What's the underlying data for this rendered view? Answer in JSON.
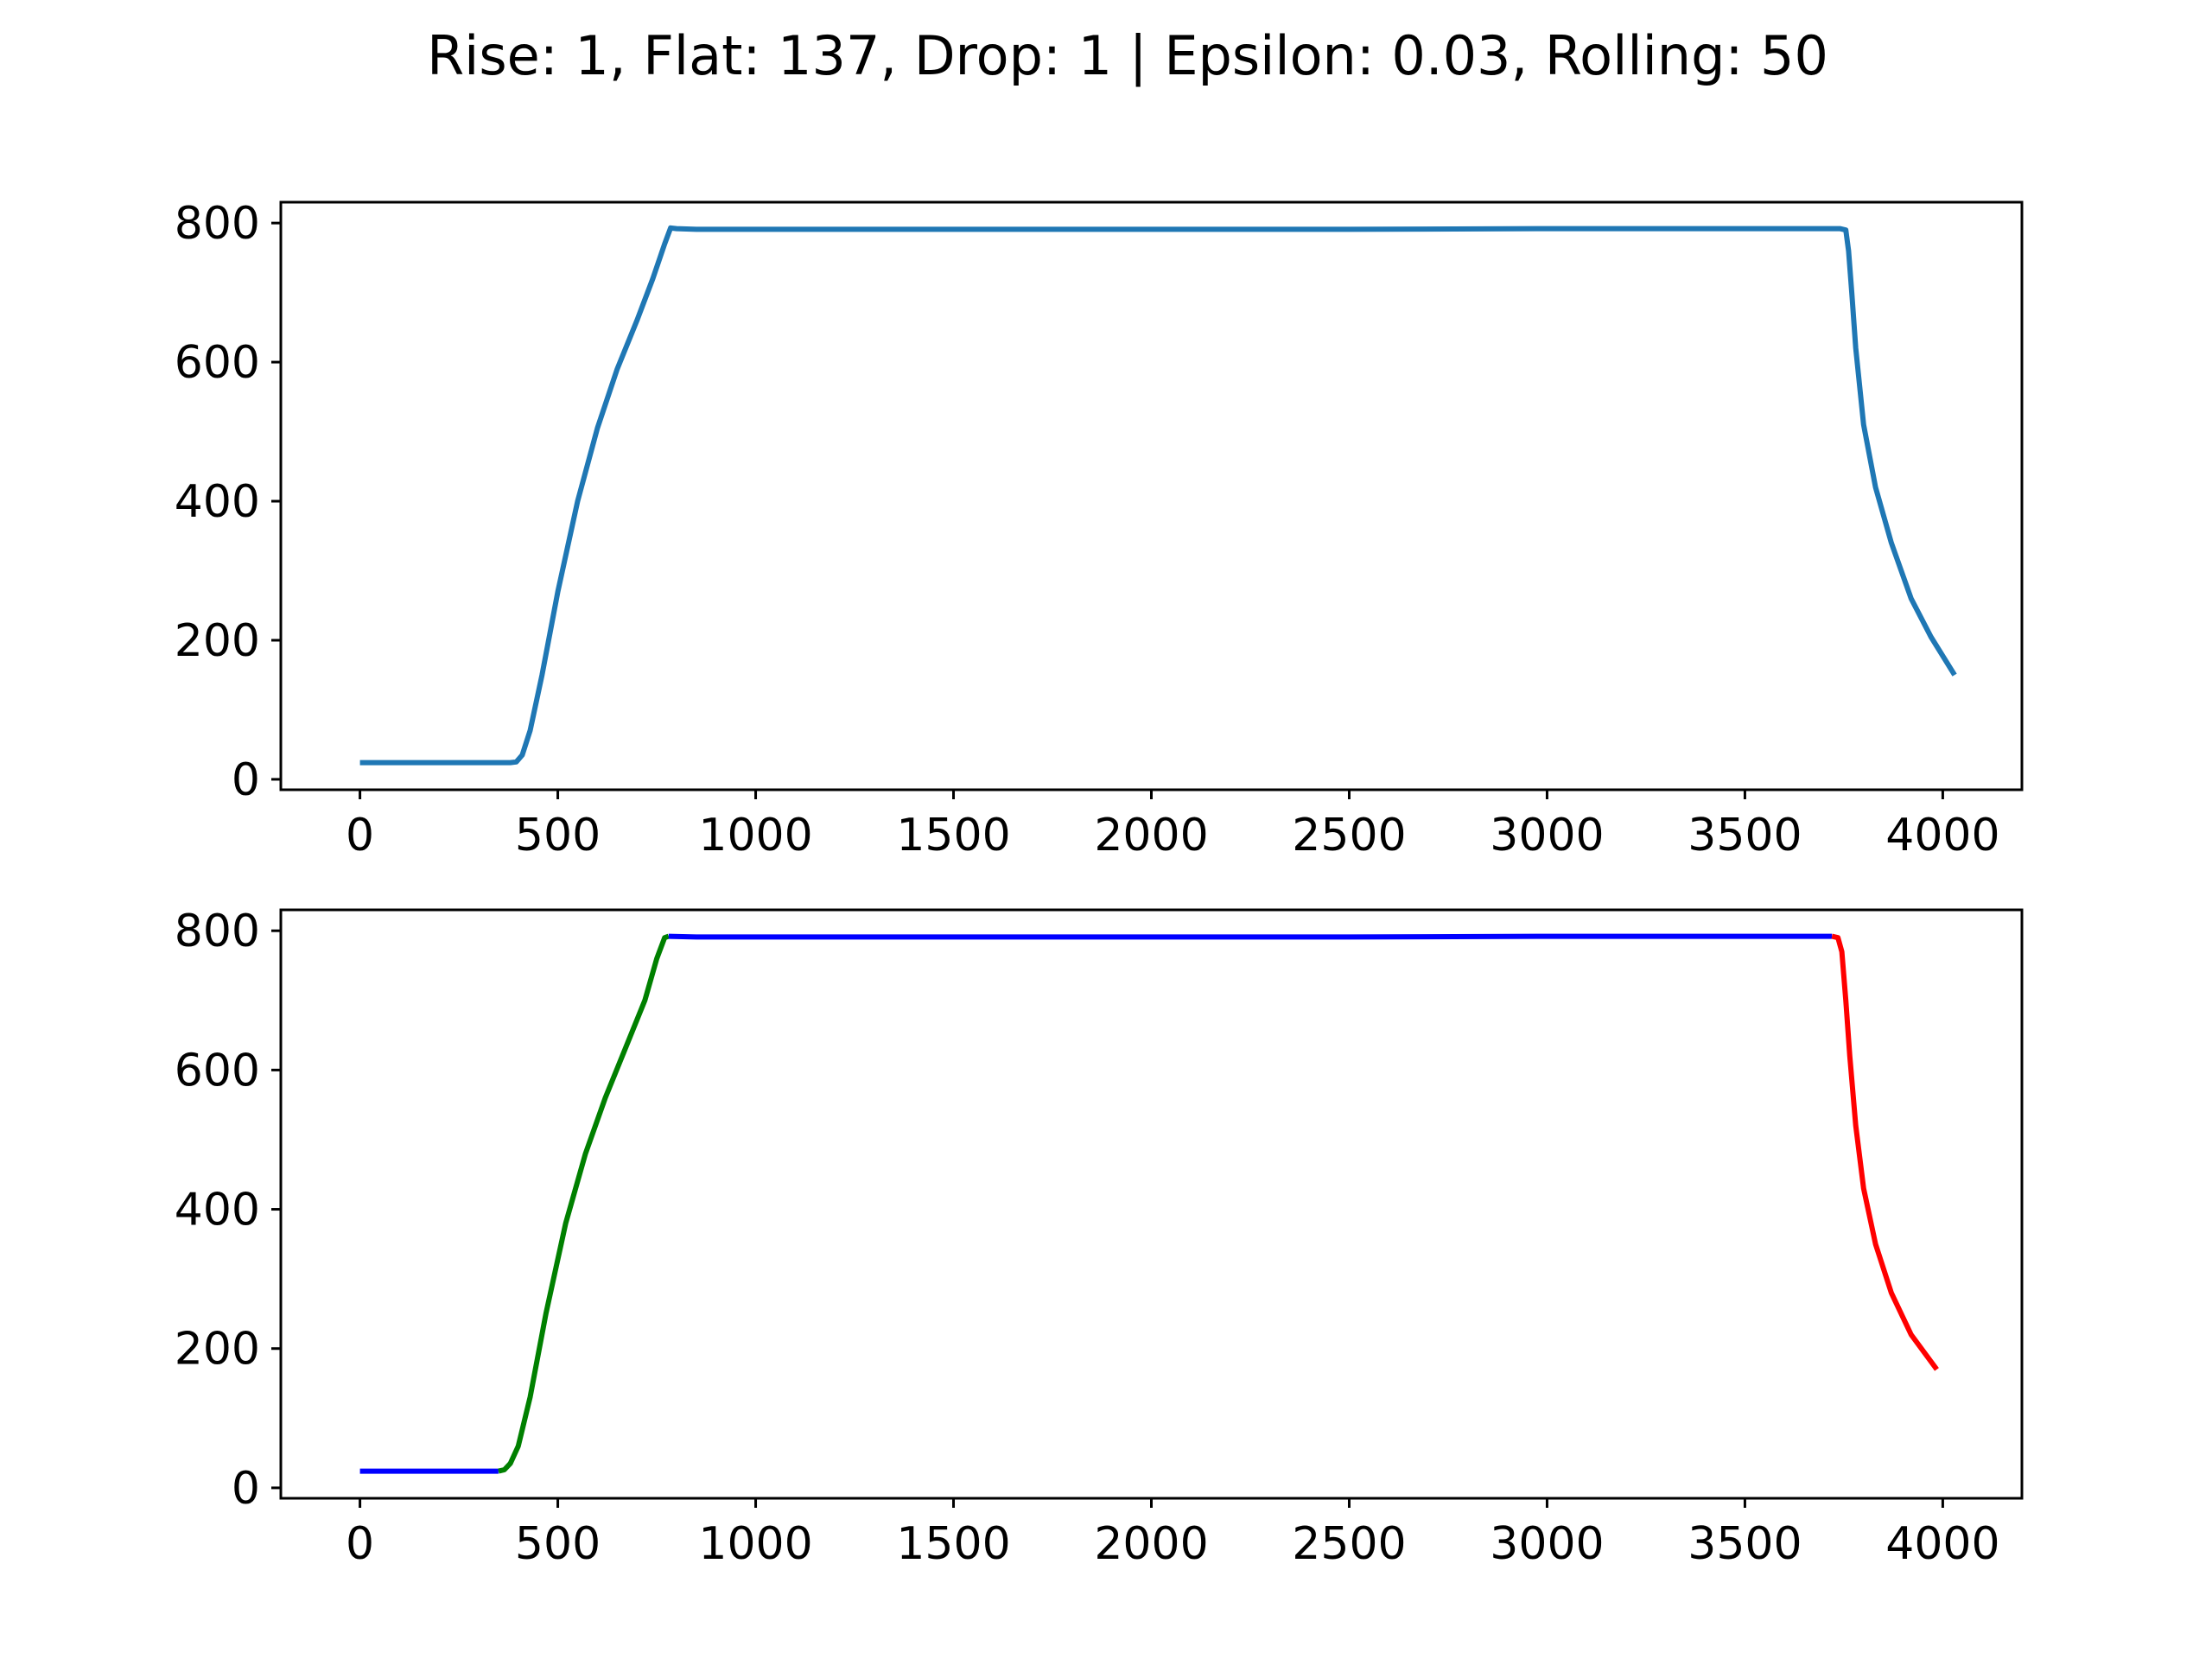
{
  "figure": {
    "title": "Rise: 1, Flat: 137, Drop: 1 | Epsilon: 0.03, Rolling: 50"
  },
  "chart_data": [
    {
      "type": "line",
      "panel": "top",
      "title": "",
      "xlabel": "",
      "ylabel": "",
      "xlim": [
        -200,
        4200
      ],
      "ylim": [
        -15,
        830
      ],
      "xticks": [
        0,
        500,
        1000,
        1500,
        2000,
        2500,
        3000,
        3500,
        4000
      ],
      "xtick_labels": [
        "0",
        "500",
        "1000",
        "1500",
        "2000",
        "2500",
        "3000",
        "3500",
        "4000"
      ],
      "yticks": [
        0,
        200,
        400,
        600,
        800
      ],
      "ytick_labels": [
        "0",
        "200",
        "400",
        "600",
        "800"
      ],
      "grid": false,
      "series": [
        {
          "color": "#1f77b4",
          "points": [
            [
              0,
              24
            ],
            [
              300,
              24
            ],
            [
              380,
              24
            ],
            [
              395,
              25
            ],
            [
              410,
              35
            ],
            [
              430,
              70
            ],
            [
              460,
              150
            ],
            [
              500,
              270
            ],
            [
              550,
              400
            ],
            [
              600,
              505
            ],
            [
              650,
              590
            ],
            [
              700,
              660
            ],
            [
              740,
              720
            ],
            [
              770,
              770
            ],
            [
              785,
              793
            ],
            [
              800,
              792
            ],
            [
              850,
              791
            ],
            [
              1000,
              791
            ],
            [
              1500,
              791
            ],
            [
              2000,
              791
            ],
            [
              2500,
              791
            ],
            [
              3000,
              792
            ],
            [
              3500,
              792
            ],
            [
              3740,
              792
            ],
            [
              3755,
              790
            ],
            [
              3762,
              760
            ],
            [
              3770,
              700
            ],
            [
              3780,
              620
            ],
            [
              3800,
              510
            ],
            [
              3830,
              420
            ],
            [
              3870,
              340
            ],
            [
              3920,
              260
            ],
            [
              3970,
              205
            ],
            [
              4030,
              150
            ]
          ]
        }
      ]
    },
    {
      "type": "line",
      "panel": "bottom",
      "title": "",
      "xlabel": "",
      "ylabel": "",
      "xlim": [
        -200,
        4200
      ],
      "ylim": [
        -15,
        830
      ],
      "xticks": [
        0,
        500,
        1000,
        1500,
        2000,
        2500,
        3000,
        3500,
        4000
      ],
      "xtick_labels": [
        "0",
        "500",
        "1000",
        "1500",
        "2000",
        "2500",
        "3000",
        "3500",
        "4000"
      ],
      "yticks": [
        0,
        200,
        400,
        600,
        800
      ],
      "ytick_labels": [
        "0",
        "200",
        "400",
        "600",
        "800"
      ],
      "grid": false,
      "series": [
        {
          "color": "#0000ff",
          "points": [
            [
              0,
              24
            ],
            [
              200,
              24
            ],
            [
              350,
              24
            ]
          ]
        },
        {
          "color": "#008000",
          "points": [
            [
              350,
              24
            ],
            [
              365,
              26
            ],
            [
              380,
              35
            ],
            [
              400,
              60
            ],
            [
              430,
              130
            ],
            [
              470,
              250
            ],
            [
              520,
              380
            ],
            [
              570,
              480
            ],
            [
              620,
              560
            ],
            [
              670,
              630
            ],
            [
              720,
              700
            ],
            [
              750,
              760
            ],
            [
              770,
              790
            ],
            [
              780,
              792
            ]
          ]
        },
        {
          "color": "#0000ff",
          "points": [
            [
              780,
              792
            ],
            [
              850,
              791
            ],
            [
              1000,
              791
            ],
            [
              1500,
              791
            ],
            [
              2000,
              791
            ],
            [
              2500,
              791
            ],
            [
              3000,
              792
            ],
            [
              3500,
              792
            ],
            [
              3700,
              792
            ],
            [
              3720,
              792
            ]
          ]
        },
        {
          "color": "#ff0000",
          "points": [
            [
              3720,
              792
            ],
            [
              3735,
              790
            ],
            [
              3745,
              770
            ],
            [
              3755,
              700
            ],
            [
              3765,
              620
            ],
            [
              3780,
              520
            ],
            [
              3800,
              430
            ],
            [
              3830,
              350
            ],
            [
              3870,
              280
            ],
            [
              3920,
              220
            ],
            [
              3985,
              170
            ]
          ]
        }
      ]
    }
  ]
}
